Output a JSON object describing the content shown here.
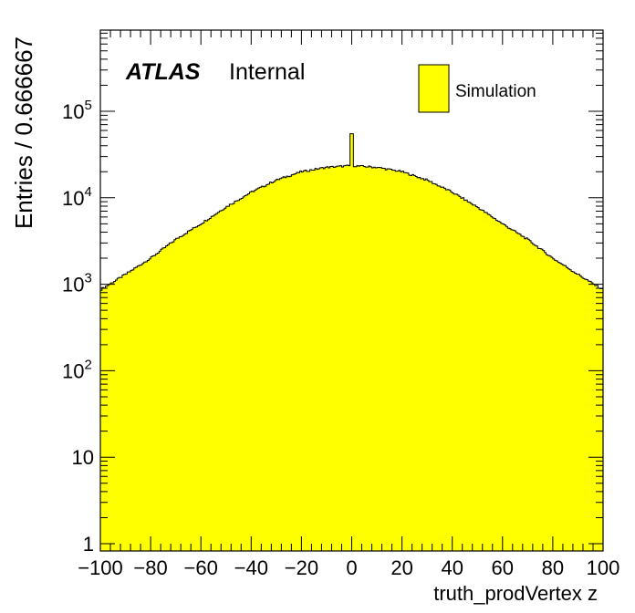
{
  "chart_data": {
    "type": "histogram",
    "title": "",
    "xlabel": "truth_prodVertex z",
    "ylabel": "Entries / 0.666667",
    "xlim": [
      -100,
      100
    ],
    "ylim": [
      0.8,
      900000
    ],
    "yscale": "log",
    "bin_width": 0.666667,
    "x_ticks": [
      -100,
      -80,
      -60,
      -40,
      -20,
      0,
      20,
      40,
      60,
      80,
      100
    ],
    "x_tick_labels": [
      "−100",
      "−80",
      "−60",
      "−40",
      "−20",
      "0",
      "20",
      "40",
      "60",
      "80",
      "100"
    ],
    "y_ticks": [
      {
        "value": 1,
        "base": "1",
        "exp": ""
      },
      {
        "value": 10,
        "base": "10",
        "exp": ""
      },
      {
        "value": 100,
        "base": "10",
        "exp": "2"
      },
      {
        "value": 1000,
        "base": "10",
        "exp": "3"
      },
      {
        "value": 10000,
        "base": "10",
        "exp": "4"
      },
      {
        "value": 100000,
        "base": "10",
        "exp": "5"
      }
    ],
    "profile": {
      "description_points_x": [
        -100,
        -90,
        -80,
        -70,
        -60,
        -50,
        -40,
        -30,
        -20,
        -10,
        0,
        10,
        20,
        30,
        40,
        50,
        60,
        70,
        80,
        90,
        100
      ],
      "values": [
        860,
        1300,
        2000,
        3300,
        5000,
        7800,
        11600,
        16000,
        20000,
        22500,
        23500,
        22500,
        20000,
        16000,
        11600,
        7800,
        5000,
        3300,
        2000,
        1300,
        860
      ]
    },
    "spike": {
      "x": 0,
      "value": 55000
    },
    "series": [
      {
        "name": "Simulation",
        "fill": "#ffff00",
        "line": "#000000"
      }
    ],
    "legend_position": "top-right"
  },
  "labels": {
    "atlas": "ATLAS",
    "internal": "Internal"
  },
  "colors": {
    "fill": "#ffff00",
    "line": "#000000",
    "background": "#ffffff"
  }
}
